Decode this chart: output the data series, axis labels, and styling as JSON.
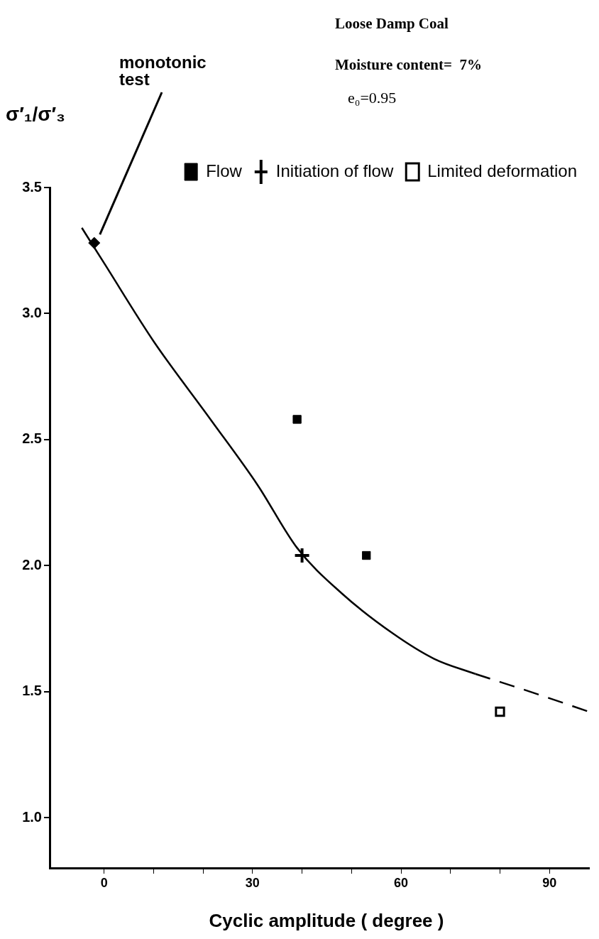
{
  "chart_data": {
    "type": "scatter",
    "title": "Loose Damp Coal",
    "xlabel": "Cyclic amplitude ( degree )",
    "ylabel": "σ′₁/σ′₃",
    "xlim": [
      -11,
      98
    ],
    "ylim": [
      0.8,
      3.5
    ],
    "xticks": [
      0,
      {
        "value": 10,
        "label": null
      },
      {
        "value": 20,
        "label": null
      },
      30,
      {
        "value": 40,
        "label": null
      },
      {
        "value": 50,
        "label": null
      },
      60,
      {
        "value": 70,
        "label": null
      },
      {
        "value": 80,
        "label": null
      },
      90
    ],
    "yticks": [
      {
        "value": 1,
        "label": "1.0"
      },
      {
        "value": 1.5,
        "label": "1.5"
      },
      {
        "value": 2,
        "label": "2.0"
      },
      {
        "value": 2.5,
        "label": "2.5"
      },
      {
        "value": 3,
        "label": "3.0"
      },
      {
        "value": 3.5,
        "label": "3.5"
      }
    ],
    "grid": false,
    "legend": "top right",
    "annotations": [
      "Moisture content=  7%",
      "e₀=0.95",
      "monotonic test"
    ],
    "series": [
      {
        "type": "line",
        "color": "#000000",
        "marker": "none",
        "line_style": "solid",
        "x": [
          -4.5,
          0,
          10,
          21.5,
          31,
          39,
          48,
          58.4,
          66.7,
          75
        ],
        "values": [
          3.34,
          3.2,
          2.89,
          2.58,
          2.32,
          2.07,
          1.89,
          1.73,
          1.63,
          1.57
        ]
      },
      {
        "type": "line",
        "color": "#000000",
        "marker": "none",
        "line_style": "dashed",
        "x": [
          75,
          86,
          98
        ],
        "values": [
          1.57,
          1.5,
          1.42
        ]
      },
      {
        "color": "#000000",
        "marker": "diamond",
        "x": [
          -2
        ],
        "values": [
          3.28
        ]
      },
      {
        "name": "Flow",
        "color": "#000000",
        "marker": "square",
        "x": [
          39,
          53
        ],
        "values": [
          2.58,
          2.04
        ]
      },
      {
        "name": "Initiation of flow",
        "color": "#000000",
        "marker": "cross",
        "x": [
          40
        ],
        "values": [
          2.04
        ]
      },
      {
        "name": "Limited deformation",
        "color": "#000000",
        "marker": "square_open",
        "x": [
          80
        ],
        "values": [
          1.42
        ]
      }
    ]
  }
}
